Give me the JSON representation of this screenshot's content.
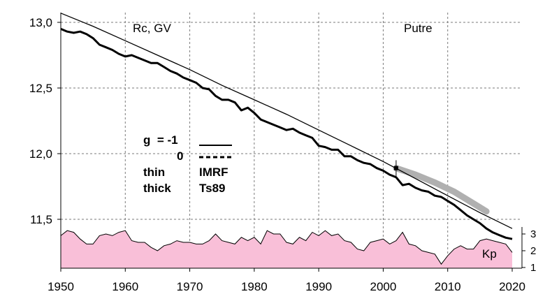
{
  "chart_data": {
    "type": "line",
    "title": "",
    "annotations": {
      "quantity": "Rc, GV",
      "station": "Putre",
      "kp_label": "Kp"
    },
    "x_axis": {
      "min": 1950,
      "max": 2022,
      "ticks": [
        1950,
        1960,
        1970,
        1980,
        1990,
        2000,
        2010,
        2020
      ]
    },
    "y_axis": {
      "min": 11.1,
      "max": 13.1,
      "ticks": [
        11.5,
        12.0,
        12.5,
        13.0
      ],
      "tick_labels": [
        "11,5",
        "12,0",
        "12,5",
        "13,0"
      ]
    },
    "kp_axis": {
      "ticks": [
        1,
        2,
        3
      ],
      "tick_labels": [
        "1",
        "2",
        "3"
      ]
    },
    "grid": true,
    "legend": {
      "rows": [
        {
          "label": "g  = -1",
          "style": "solid"
        },
        {
          "label": "0",
          "style": "dashed"
        }
      ],
      "thin_label": "thin",
      "thick_label": "thick",
      "thin_model": "IMRF",
      "thick_model": "Ts89"
    },
    "series": [
      {
        "line": "thin",
        "color": "#000000",
        "x": [
          1950,
          1955,
          1960,
          1965,
          1970,
          1975,
          1980,
          1985,
          1990,
          1995,
          2000,
          2005,
          2010,
          2015,
          2020
        ],
        "y": [
          13.07,
          12.97,
          12.86,
          12.75,
          12.64,
          12.52,
          12.41,
          12.3,
          12.18,
          12.06,
          11.94,
          11.81,
          11.68,
          11.55,
          11.43
        ]
      },
      {
        "line": "thick",
        "color": "#000000",
        "x": [
          1950,
          1951,
          1952,
          1953,
          1954,
          1955,
          1956,
          1957,
          1958,
          1959,
          1960,
          1961,
          1962,
          1963,
          1964,
          1965,
          1966,
          1967,
          1968,
          1969,
          1970,
          1971,
          1972,
          1973,
          1974,
          1975,
          1976,
          1977,
          1978,
          1979,
          1980,
          1981,
          1982,
          1983,
          1984,
          1985,
          1986,
          1987,
          1988,
          1989,
          1990,
          1991,
          1992,
          1993,
          1994,
          1995,
          1996,
          1997,
          1998,
          1999,
          2000,
          2001,
          2002,
          2003,
          2004,
          2005,
          2006,
          2007,
          2008,
          2009,
          2010,
          2011,
          2012,
          2013,
          2014,
          2015,
          2016,
          2017,
          2018,
          2019,
          2020
        ],
        "y": [
          12.95,
          12.93,
          12.92,
          12.93,
          12.91,
          12.88,
          12.83,
          12.81,
          12.79,
          12.76,
          12.74,
          12.75,
          12.73,
          12.71,
          12.69,
          12.69,
          12.66,
          12.63,
          12.61,
          12.58,
          12.56,
          12.54,
          12.5,
          12.49,
          12.44,
          12.41,
          12.41,
          12.39,
          12.33,
          12.35,
          12.31,
          12.26,
          12.24,
          12.22,
          12.2,
          12.18,
          12.19,
          12.16,
          12.14,
          12.12,
          12.06,
          12.05,
          12.03,
          12.03,
          11.98,
          11.98,
          11.95,
          11.93,
          11.92,
          11.89,
          11.87,
          11.84,
          11.82,
          11.76,
          11.77,
          11.74,
          11.72,
          11.71,
          11.68,
          11.67,
          11.64,
          11.61,
          11.57,
          11.53,
          11.5,
          11.47,
          11.43,
          11.4,
          11.38,
          11.36,
          11.35
        ]
      },
      {
        "line": "grey band",
        "color": "#b0b0b0",
        "x": [
          2002,
          2005,
          2008,
          2011,
          2014,
          2016
        ],
        "y": [
          11.89,
          11.84,
          11.78,
          11.71,
          11.62,
          11.56
        ]
      }
    ],
    "marker": {
      "x": 2002,
      "y": 11.89,
      "error": 0.06
    },
    "kp": {
      "color": "#f9bfd8",
      "x": [
        1950,
        1951,
        1952,
        1953,
        1954,
        1955,
        1956,
        1957,
        1958,
        1959,
        1960,
        1961,
        1962,
        1963,
        1964,
        1965,
        1966,
        1967,
        1968,
        1969,
        1970,
        1971,
        1972,
        1973,
        1974,
        1975,
        1976,
        1977,
        1978,
        1979,
        1980,
        1981,
        1982,
        1983,
        1984,
        1985,
        1986,
        1987,
        1988,
        1989,
        1990,
        1991,
        1992,
        1993,
        1994,
        1995,
        1996,
        1997,
        1998,
        1999,
        2000,
        2001,
        2002,
        2003,
        2004,
        2005,
        2006,
        2007,
        2008,
        2009,
        2010,
        2011,
        2012,
        2013,
        2014,
        2015,
        2016,
        2017,
        2018,
        2019,
        2020
      ],
      "y": [
        2.9,
        3.2,
        3.1,
        2.7,
        2.4,
        2.4,
        2.9,
        3.0,
        2.9,
        3.1,
        3.2,
        2.6,
        2.5,
        2.5,
        2.2,
        2.0,
        2.3,
        2.4,
        2.6,
        2.5,
        2.5,
        2.4,
        2.4,
        2.6,
        3.0,
        2.6,
        2.5,
        2.4,
        2.8,
        2.6,
        2.8,
        2.4,
        3.2,
        3.0,
        3.0,
        2.5,
        2.4,
        2.8,
        2.6,
        3.1,
        2.9,
        3.2,
        2.9,
        3.0,
        2.6,
        2.5,
        2.1,
        2.0,
        2.5,
        2.6,
        2.7,
        2.4,
        2.6,
        3.1,
        2.4,
        2.3,
        2.0,
        1.9,
        1.8,
        1.2,
        1.7,
        2.1,
        2.3,
        2.1,
        2.1,
        2.6,
        2.7,
        2.6,
        2.5,
        2.4,
        1.9
      ]
    }
  }
}
